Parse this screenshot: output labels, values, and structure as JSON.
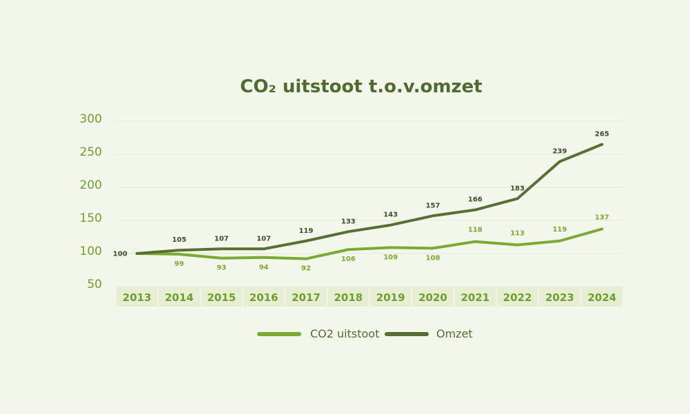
{
  "chart_data": {
    "type": "line",
    "title": "CO₂ uitstoot t.o.v.omzet",
    "categories": [
      "2013",
      "2014",
      "2015",
      "2016",
      "2017",
      "2018",
      "2019",
      "2020",
      "2021",
      "2022",
      "2023",
      "2024"
    ],
    "ylim": [
      50,
      300
    ],
    "yticks": [
      300,
      250,
      200,
      150,
      100,
      50
    ],
    "grid": true,
    "legend_position": "bottom",
    "series": [
      {
        "name": "CO2 uitstoot",
        "color": "#7aaa32",
        "values": [
          100,
          99,
          93,
          94,
          92,
          106,
          109,
          108,
          118,
          113,
          119,
          137
        ]
      },
      {
        "name": "Omzet",
        "color": "#576f35",
        "values": [
          100,
          105,
          107,
          107,
          119,
          133,
          143,
          157,
          166,
          183,
          239,
          265
        ]
      }
    ]
  }
}
